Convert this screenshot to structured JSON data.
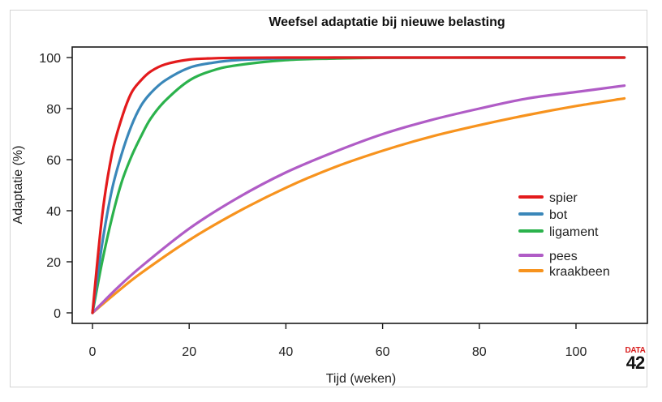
{
  "chart_data": {
    "type": "line",
    "title": "Weefsel adaptatie bij nieuwe belasting",
    "xlabel": "Tijd (weken)",
    "ylabel": "Adaptatie (%)",
    "xlim": [
      0,
      110
    ],
    "ylim": [
      0,
      100
    ],
    "xticks": [
      "0",
      "20",
      "40",
      "60",
      "80",
      "100"
    ],
    "yticks": [
      "0",
      "20",
      "40",
      "60",
      "80",
      "100"
    ],
    "grid": false,
    "legend_position": "right",
    "series": [
      {
        "name": "spier",
        "color": "#e31a1c",
        "x": [
          0,
          2,
          4,
          6,
          8,
          10,
          12,
          15,
          20,
          25,
          30,
          40,
          50,
          60,
          80,
          100,
          110
        ],
        "values": [
          0,
          38,
          62,
          76,
          86,
          91,
          94.5,
          97.3,
          99.2,
          99.7,
          99.9,
          100,
          100,
          100,
          100,
          100,
          100
        ]
      },
      {
        "name": "bot",
        "color": "#3a87b9",
        "x": [
          0,
          2,
          4,
          6,
          8,
          10,
          12,
          15,
          20,
          25,
          30,
          40,
          50,
          60,
          80,
          100,
          110
        ],
        "values": [
          0,
          27,
          48,
          62,
          73,
          81,
          86,
          91,
          96,
          98,
          99,
          99.7,
          100,
          100,
          100,
          100,
          100
        ]
      },
      {
        "name": "ligament",
        "color": "#2bb24c",
        "x": [
          0,
          2,
          4,
          6,
          8,
          10,
          12,
          15,
          20,
          25,
          30,
          40,
          50,
          60,
          80,
          100,
          110
        ],
        "values": [
          0,
          20,
          37,
          51,
          61,
          69,
          76,
          83,
          91,
          95,
          97,
          99,
          99.6,
          99.9,
          100,
          100,
          100
        ]
      },
      {
        "name": "pees",
        "color": "#b05cc6",
        "x": [
          0,
          5,
          10,
          20,
          30,
          40,
          50,
          60,
          70,
          80,
          90,
          100,
          110
        ],
        "values": [
          0,
          9.5,
          18,
          33,
          45,
          55,
          63,
          70,
          75.5,
          80,
          84,
          86.5,
          89
        ]
      },
      {
        "name": "kraakbeen",
        "color": "#f7931e",
        "x": [
          0,
          5,
          10,
          20,
          30,
          40,
          50,
          60,
          70,
          80,
          90,
          100,
          110
        ],
        "values": [
          0,
          8,
          15.5,
          28.5,
          39.5,
          49,
          57,
          63.5,
          69,
          73.5,
          77.5,
          81,
          84
        ]
      }
    ]
  },
  "logo": {
    "top": "DATA",
    "bottom": "42"
  }
}
